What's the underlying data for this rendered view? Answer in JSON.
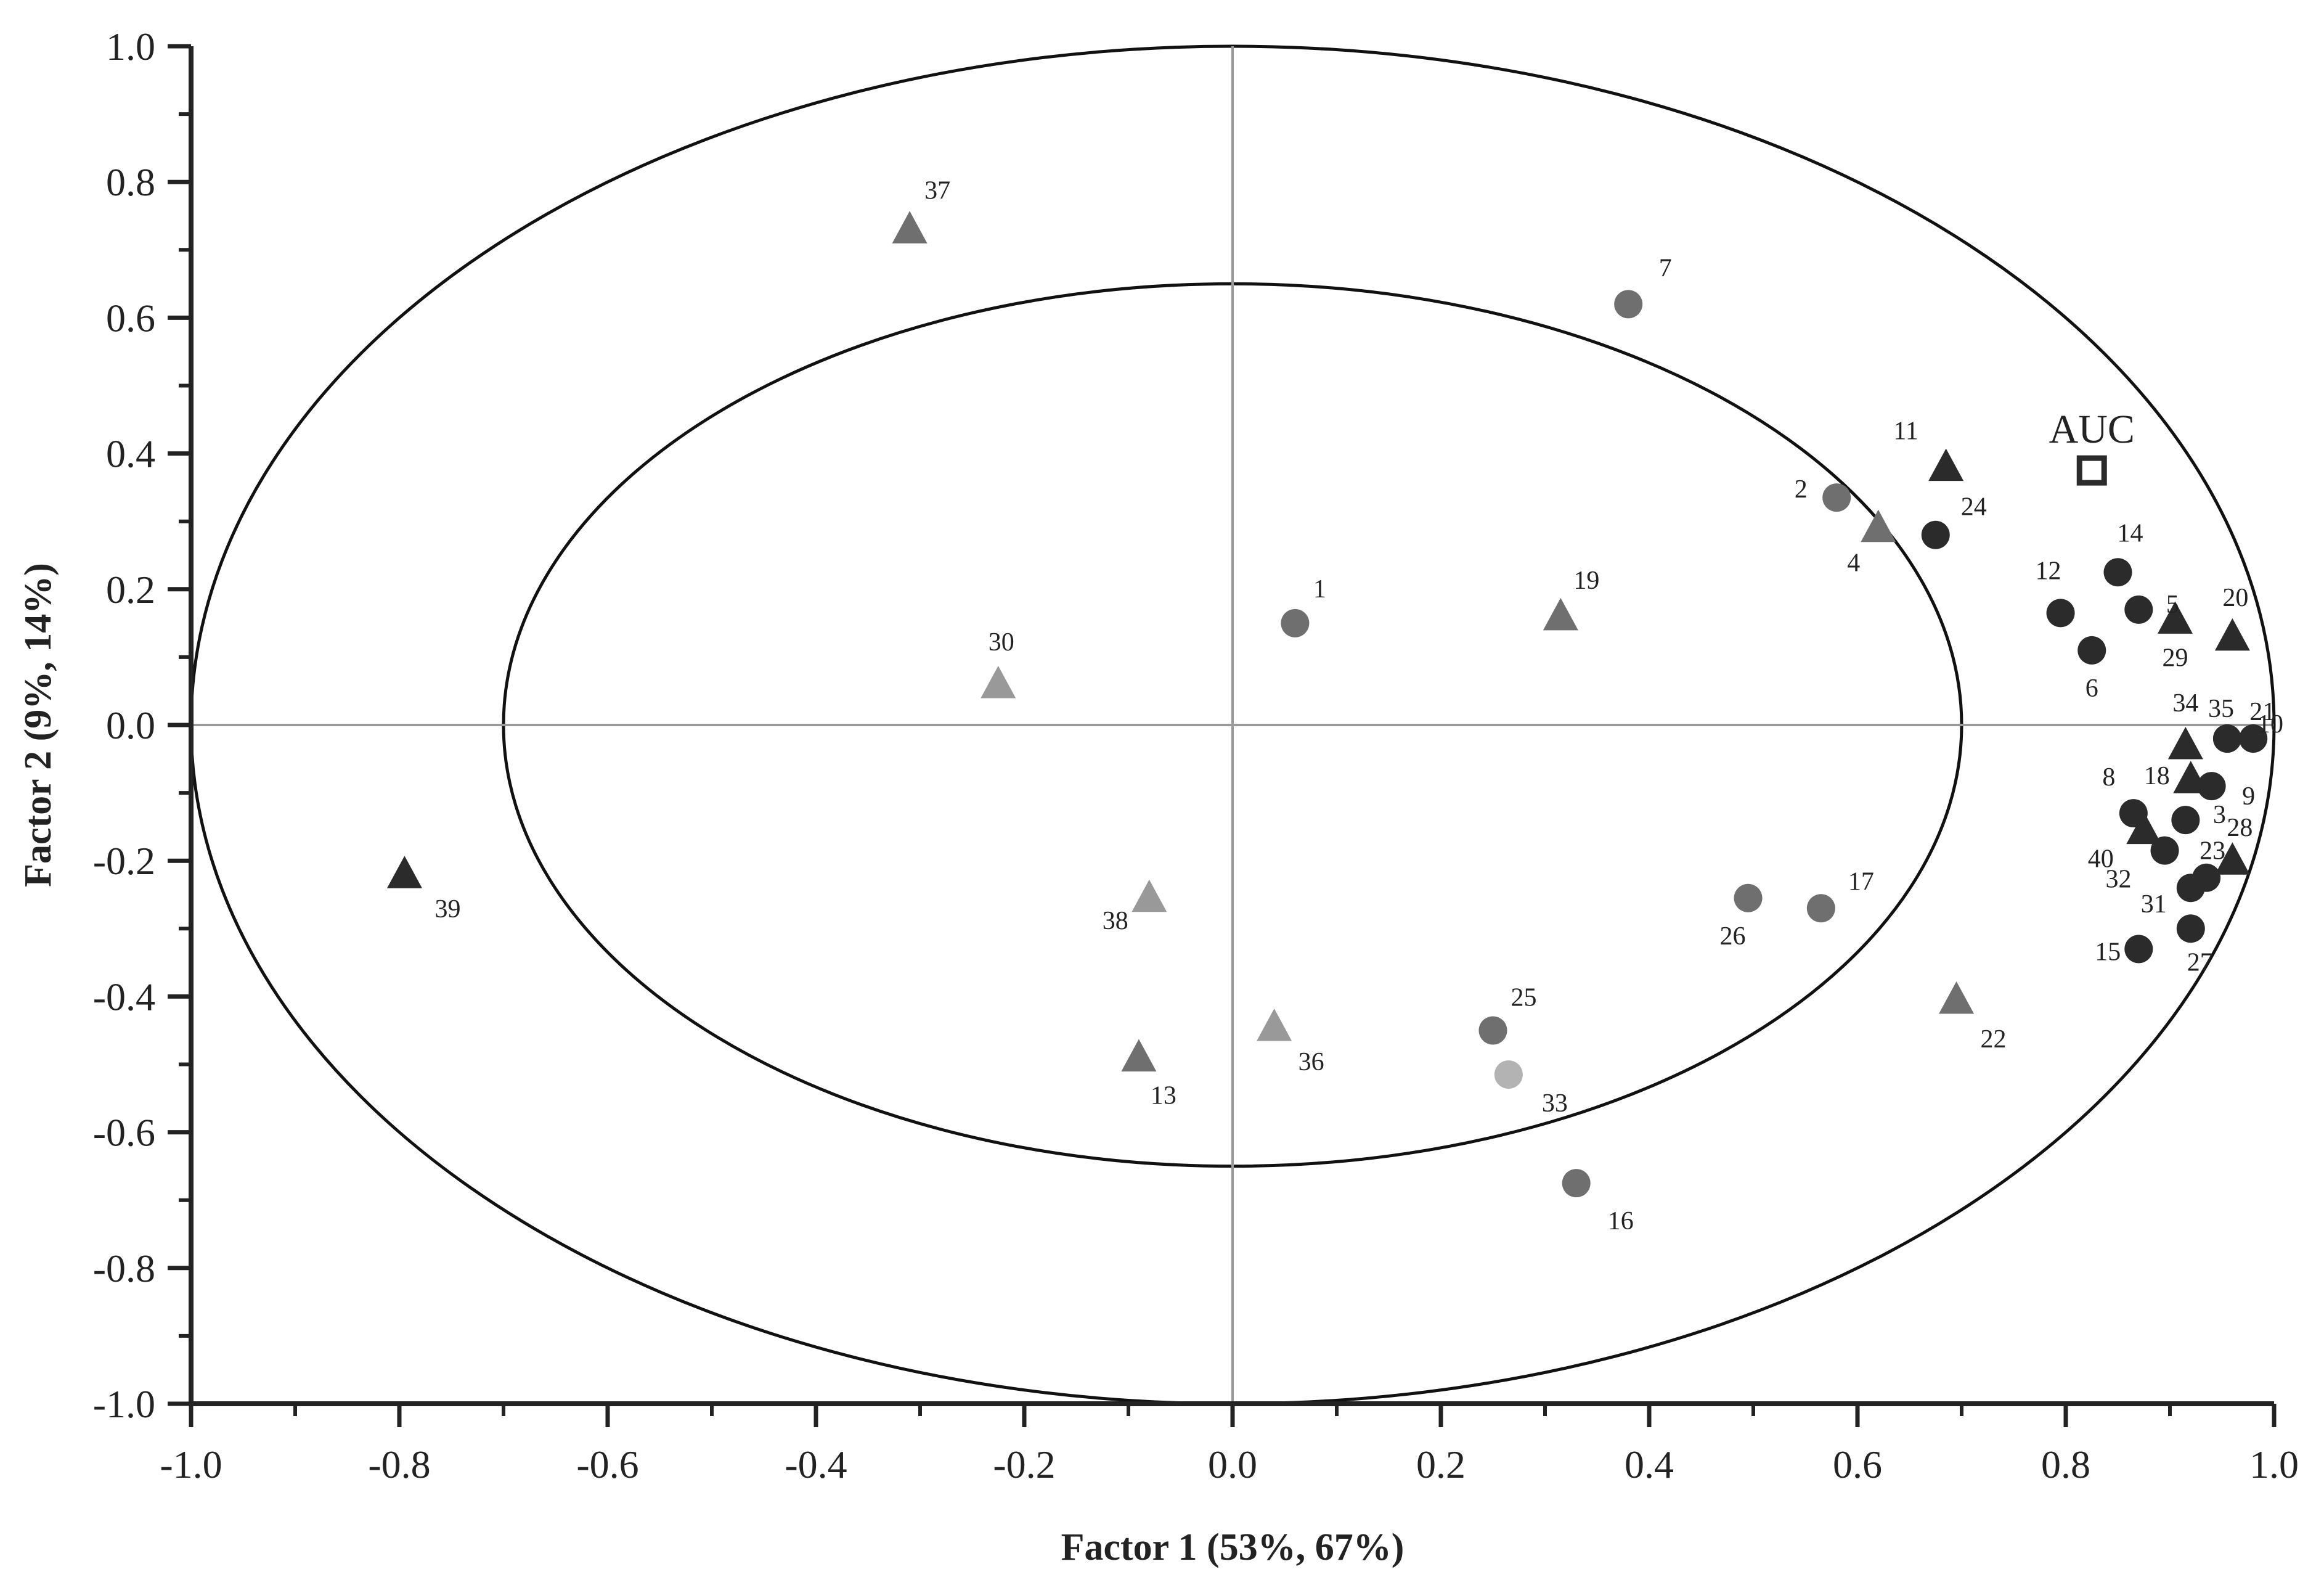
{
  "chart_data": {
    "type": "scatter",
    "title": "",
    "xlabel": "Factor 1 (53%, 67%)",
    "ylabel": "Factor 2 (9%, 14%)",
    "xlim": [
      -1.0,
      1.0
    ],
    "ylim": [
      -1.0,
      1.0
    ],
    "x_ticks": [
      "-1.0",
      "-0.8",
      "-0.6",
      "-0.4",
      "-0.2",
      "0.0",
      "0.2",
      "0.4",
      "0.6",
      "0.8",
      "1.0"
    ],
    "y_ticks": [
      "1.0",
      "0.8",
      "0.6",
      "0.4",
      "0.2",
      "0.0",
      "-0.2",
      "-0.4",
      "-0.6",
      "-0.8",
      "-1.0"
    ],
    "x_tick_values": [
      -1.0,
      -0.8,
      -0.6,
      -0.4,
      -0.2,
      0.0,
      0.2,
      0.4,
      0.6,
      0.8,
      1.0
    ],
    "y_tick_values": [
      1.0,
      0.8,
      0.6,
      0.4,
      0.2,
      0.0,
      -0.2,
      -0.4,
      -0.6,
      -0.8,
      -1.0
    ],
    "grid": false,
    "reference_lines": {
      "x": 0.0,
      "y": 0.0,
      "color": "#9a9a9a"
    },
    "ellipses": [
      {
        "rx": 1.0,
        "ry": 1.0
      },
      {
        "rx": 0.7,
        "ry": 0.65
      }
    ],
    "colors": {
      "dark": "#2b2b2b",
      "medium": "#6f6f6f",
      "light": "#999999",
      "lighter": "#b3b3b3",
      "axis": "#222222"
    },
    "points": [
      {
        "label": "1",
        "x": 0.06,
        "y": 0.15,
        "marker": "circle",
        "tone": "medium"
      },
      {
        "label": "2",
        "x": 0.58,
        "y": 0.335,
        "marker": "circle",
        "tone": "medium"
      },
      {
        "label": "3",
        "x": 0.915,
        "y": -0.14,
        "marker": "circle",
        "tone": "dark"
      },
      {
        "label": "4",
        "x": 0.62,
        "y": 0.29,
        "marker": "triangle",
        "tone": "medium"
      },
      {
        "label": "5",
        "x": 0.87,
        "y": 0.17,
        "marker": "circle",
        "tone": "dark"
      },
      {
        "label": "6",
        "x": 0.825,
        "y": 0.11,
        "marker": "circle",
        "tone": "dark"
      },
      {
        "label": "7",
        "x": 0.38,
        "y": 0.62,
        "marker": "circle",
        "tone": "medium"
      },
      {
        "label": "8",
        "x": 0.865,
        "y": -0.13,
        "marker": "circle",
        "tone": "dark"
      },
      {
        "label": "9",
        "x": 0.94,
        "y": -0.09,
        "marker": "circle",
        "tone": "dark"
      },
      {
        "label": "10",
        "x": 0.955,
        "y": -0.02,
        "marker": "circle",
        "tone": "dark"
      },
      {
        "label": "11",
        "x": 0.685,
        "y": 0.38,
        "marker": "triangle",
        "tone": "dark"
      },
      {
        "label": "12",
        "x": 0.795,
        "y": 0.165,
        "marker": "circle",
        "tone": "dark"
      },
      {
        "label": "13",
        "x": -0.09,
        "y": -0.49,
        "marker": "triangle",
        "tone": "medium"
      },
      {
        "label": "14",
        "x": 0.85,
        "y": 0.225,
        "marker": "circle",
        "tone": "dark"
      },
      {
        "label": "15",
        "x": 0.87,
        "y": -0.33,
        "marker": "circle",
        "tone": "dark"
      },
      {
        "label": "16",
        "x": 0.33,
        "y": -0.675,
        "marker": "circle",
        "tone": "medium"
      },
      {
        "label": "17",
        "x": 0.565,
        "y": -0.27,
        "marker": "circle",
        "tone": "medium"
      },
      {
        "label": "18",
        "x": 0.92,
        "y": -0.08,
        "marker": "triangle",
        "tone": "dark"
      },
      {
        "label": "19",
        "x": 0.315,
        "y": 0.16,
        "marker": "triangle",
        "tone": "medium"
      },
      {
        "label": "20",
        "x": 0.96,
        "y": 0.13,
        "marker": "triangle",
        "tone": "dark"
      },
      {
        "label": "21",
        "x": 0.98,
        "y": -0.02,
        "marker": "circle",
        "tone": "dark"
      },
      {
        "label": "22",
        "x": 0.695,
        "y": -0.405,
        "marker": "triangle",
        "tone": "medium"
      },
      {
        "label": "23",
        "x": 0.935,
        "y": -0.225,
        "marker": "circle",
        "tone": "dark"
      },
      {
        "label": "24",
        "x": 0.675,
        "y": 0.28,
        "marker": "circle",
        "tone": "dark"
      },
      {
        "label": "25",
        "x": 0.25,
        "y": -0.45,
        "marker": "circle",
        "tone": "medium"
      },
      {
        "label": "26",
        "x": 0.495,
        "y": -0.255,
        "marker": "circle",
        "tone": "medium"
      },
      {
        "label": "27",
        "x": 0.92,
        "y": -0.3,
        "marker": "circle",
        "tone": "dark"
      },
      {
        "label": "28",
        "x": 0.96,
        "y": -0.2,
        "marker": "triangle",
        "tone": "dark"
      },
      {
        "label": "29",
        "x": 0.905,
        "y": 0.155,
        "marker": "triangle",
        "tone": "dark"
      },
      {
        "label": "30",
        "x": -0.225,
        "y": 0.06,
        "marker": "triangle",
        "tone": "light"
      },
      {
        "label": "31",
        "x": 0.92,
        "y": -0.24,
        "marker": "circle",
        "tone": "dark"
      },
      {
        "label": "32",
        "x": 0.895,
        "y": -0.185,
        "marker": "circle",
        "tone": "dark"
      },
      {
        "label": "33",
        "x": 0.265,
        "y": -0.515,
        "marker": "circle",
        "tone": "lighter"
      },
      {
        "label": "34",
        "x": 0.915,
        "y": -0.03,
        "marker": "triangle",
        "tone": "dark"
      },
      {
        "label": "35",
        "x": 0.955,
        "y": -0.02,
        "marker": "circle",
        "tone": "dark"
      },
      {
        "label": "36",
        "x": 0.04,
        "y": -0.445,
        "marker": "triangle",
        "tone": "light"
      },
      {
        "label": "37",
        "x": -0.31,
        "y": 0.73,
        "marker": "triangle",
        "tone": "medium"
      },
      {
        "label": "38",
        "x": -0.08,
        "y": -0.255,
        "marker": "triangle",
        "tone": "light"
      },
      {
        "label": "39",
        "x": -0.795,
        "y": -0.22,
        "marker": "triangle",
        "tone": "dark"
      },
      {
        "label": "40",
        "x": 0.875,
        "y": -0.155,
        "marker": "triangle",
        "tone": "dark"
      },
      {
        "label": "AUC",
        "x": 0.825,
        "y": 0.375,
        "marker": "square-open",
        "tone": "dark"
      }
    ]
  }
}
